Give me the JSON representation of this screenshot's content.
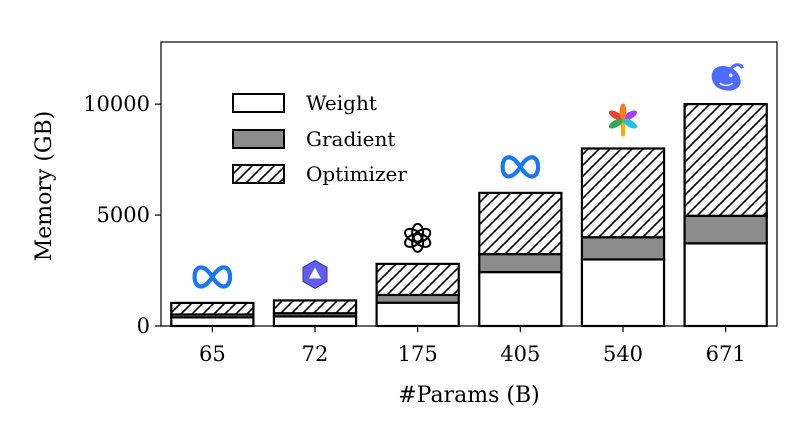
{
  "chart_data": {
    "type": "bar",
    "stacked": true,
    "title": "",
    "xlabel": "#Params (B)",
    "ylabel": "Memory (GB)",
    "ylim": [
      0,
      12800
    ],
    "yticks": [
      0,
      5000,
      10000
    ],
    "grid": false,
    "legend_position": "top-left",
    "categories": [
      "65",
      "72",
      "175",
      "405",
      "540",
      "671"
    ],
    "series": [
      {
        "name": "Weight",
        "pattern": "solid",
        "color": "#ffffff",
        "values": [
          390,
          432,
          1050,
          2430,
          3000,
          3726
        ]
      },
      {
        "name": "Gradient",
        "pattern": "solid",
        "color": "#8c8c8c",
        "values": [
          130,
          144,
          350,
          810,
          1000,
          1242
        ]
      },
      {
        "name": "Optimizer",
        "pattern": "hatch",
        "color": "#ffffff",
        "values": [
          520,
          576,
          1400,
          2760,
          4000,
          5032
        ]
      }
    ],
    "bar_icons": [
      "meta-logo-icon",
      "qwen-logo-icon",
      "openai-logo-icon",
      "meta-logo-icon",
      "palm-logo-icon",
      "deepseek-logo-icon"
    ],
    "colors": {
      "meta_blue": "#1877f2",
      "qwen_purple": "#615ced",
      "deepseek_blue": "#4d6bfe"
    }
  }
}
